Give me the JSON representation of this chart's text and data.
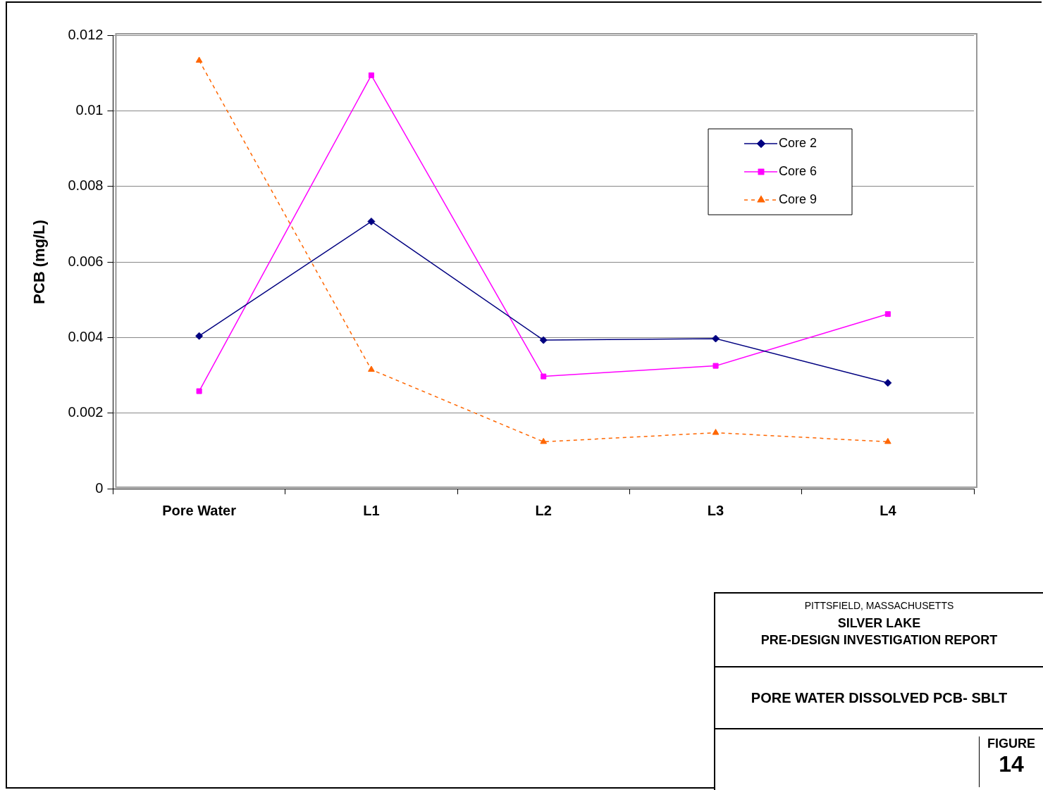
{
  "chart_data": {
    "type": "line",
    "ylabel": "PCB (mg/L)",
    "categories": [
      "Pore Water",
      "L1",
      "L2",
      "L3",
      "L4"
    ],
    "series": [
      {
        "name": "Core 2",
        "color": "#000080",
        "values": [
          0.00404,
          0.00707,
          0.00393,
          0.00397,
          0.0028
        ],
        "marker": "diamond",
        "line_style": "solid"
      },
      {
        "name": "Core 6",
        "color": "#ff00ff",
        "values": [
          0.00258,
          0.01094,
          0.00297,
          0.00325,
          0.00462
        ],
        "marker": "square",
        "line_style": "solid"
      },
      {
        "name": "Core 9",
        "color": "#ff6600",
        "values": [
          0.01133,
          0.00315,
          0.00124,
          0.00148,
          0.00124
        ],
        "marker": "triangle",
        "line_style": "dashed"
      }
    ],
    "ylim": [
      0,
      0.012
    ],
    "yticks": [
      0,
      0.002,
      0.004,
      0.006,
      0.008,
      0.01,
      0.012
    ],
    "grid": "y",
    "legend": "top right",
    "annotations": [
      "PITTSFIELD, MASSACHUSETTS",
      "SILVER LAKE",
      "PRE-DESIGN INVESTIGATION REPORT",
      "PORE WATER DISSOLVED PCB- SBLT",
      "FIGURE",
      "14"
    ]
  }
}
